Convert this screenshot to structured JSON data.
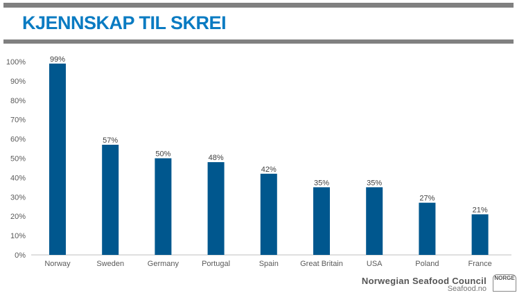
{
  "title": "KJENNSKAP TIL SKREI",
  "footer": {
    "org": "Norwegian Seafood Council",
    "site": "Seafood.no",
    "badge": "NORGE"
  },
  "colors": {
    "bar": "#00578e",
    "title": "#0a7bc2"
  },
  "chart_data": {
    "type": "bar",
    "title": "KJENNSKAP TIL SKREI",
    "categories": [
      "Norway",
      "Sweden",
      "Germany",
      "Portugal",
      "Spain",
      "Great Britain",
      "USA",
      "Poland",
      "France"
    ],
    "values": [
      99,
      57,
      50,
      48,
      42,
      35,
      35,
      27,
      21
    ],
    "data_labels": [
      "99%",
      "57%",
      "50%",
      "48%",
      "42%",
      "35%",
      "35%",
      "27%",
      "21%"
    ],
    "ylim": [
      0,
      100
    ],
    "yticks": [
      "0%",
      "10%",
      "20%",
      "30%",
      "40%",
      "50%",
      "60%",
      "70%",
      "80%",
      "90%",
      "100%"
    ],
    "xlabel": "",
    "ylabel": "",
    "grid": false,
    "legend": "none"
  }
}
